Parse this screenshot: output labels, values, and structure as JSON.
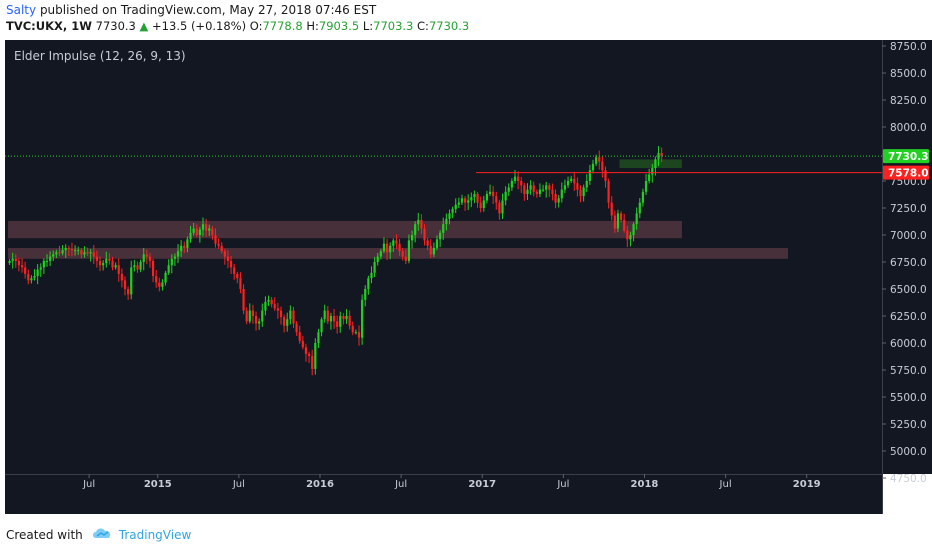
{
  "header": {
    "author": "Salty",
    "published_text": " published on TradingView.com, May 27, 2018 07:46 EST",
    "symbol": "TVC:UKX, 1W",
    "last": "7730.3",
    "change": "+13.5 (+0.18%)",
    "o_label": "O:",
    "o_value": "7778.8",
    "h_label": "H:",
    "h_value": "7903.5",
    "l_label": "L:",
    "l_value": "7703.3",
    "c_label": "C:",
    "c_value": "7730.3"
  },
  "colors": {
    "background": "#131722",
    "up": "#22d022",
    "down": "#ff2020",
    "zone": "#5a3a42",
    "green_zone": "#1e4a20",
    "resistance": "#ff2020"
  },
  "chart_data": {
    "type": "candlestick",
    "title": "Elder Impulse (12, 26, 9, 13)",
    "ylim": [
      4500,
      8850
    ],
    "y_ticks": [
      "8750.0",
      "8500.0",
      "8250.0",
      "8000.0",
      "7750.0",
      "7500.0",
      "7250.0",
      "7000.0",
      "6750.0",
      "6500.0",
      "6250.0",
      "6000.0",
      "5750.0",
      "5500.0",
      "5250.0",
      "5000.0",
      "4750.0"
    ],
    "x_ticks": [
      "Jul",
      "2015",
      "Jul",
      "2016",
      "Jul",
      "2017",
      "Jul",
      "2018",
      "Jul",
      "2019"
    ],
    "price_labels": [
      {
        "text": "7730.3",
        "value": 7730.3,
        "color": "#22d022"
      },
      {
        "text": "7578.0",
        "value": 7578.0,
        "color": "#ff2020"
      }
    ],
    "zones": [
      {
        "from_week": 0,
        "to_week": 216,
        "y_low": 6970,
        "y_high": 7130
      },
      {
        "from_week": 0,
        "to_week": 250,
        "y_low": 6780,
        "y_high": 6880
      },
      {
        "from_week": 196,
        "to_week": 216,
        "y_low": 7620,
        "y_high": 7700
      }
    ],
    "resistance": 7578.0,
    "last_price": 7730.3,
    "closes": [
      6760,
      6780,
      6760,
      6720,
      6700,
      6640,
      6580,
      6600,
      6620,
      6680,
      6700,
      6760,
      6760,
      6800,
      6820,
      6840,
      6830,
      6860,
      6880,
      6870,
      6860,
      6860,
      6860,
      6820,
      6840,
      6830,
      6840,
      6800,
      6760,
      6720,
      6740,
      6780,
      6760,
      6700,
      6720,
      6640,
      6580,
      6500,
      6450,
      6700,
      6720,
      6680,
      6750,
      6820,
      6800,
      6760,
      6620,
      6560,
      6520,
      6560,
      6650,
      6720,
      6780,
      6800,
      6850,
      6900,
      6880,
      6960,
      7020,
      7060,
      7000,
      7050,
      7100,
      7040,
      7060,
      7000,
      6920,
      6900,
      6850,
      6800,
      6760,
      6700,
      6640,
      6600,
      6500,
      6300,
      6200,
      6300,
      6250,
      6180,
      6200,
      6300,
      6380,
      6400,
      6360,
      6320,
      6300,
      6240,
      6160,
      6220,
      6300,
      6180,
      6100,
      6020,
      5960,
      5900,
      5880,
      5760,
      6000,
      6100,
      6220,
      6300,
      6200,
      6250,
      6200,
      6150,
      6250,
      6220,
      6250,
      6160,
      6100,
      6100,
      6050,
      6400,
      6500,
      6600,
      6650,
      6750,
      6800,
      6850,
      6920,
      6840,
      6900,
      6950,
      6920,
      6850,
      6800,
      6760,
      6950,
      7000,
      7100,
      7140,
      7060,
      6950,
      6900,
      6820,
      6880,
      6960,
      7020,
      7100,
      7150,
      7200,
      7240,
      7280,
      7300,
      7340,
      7300,
      7320,
      7350,
      7380,
      7300,
      7250,
      7320,
      7380,
      7400,
      7360,
      7300,
      7200,
      7320,
      7400,
      7440,
      7500,
      7540,
      7500,
      7460,
      7380,
      7420,
      7460,
      7400,
      7380,
      7420,
      7420,
      7460,
      7420,
      7380,
      7300,
      7340,
      7420,
      7460,
      7500,
      7520,
      7480,
      7420,
      7360,
      7440,
      7500,
      7600,
      7660,
      7720,
      7680,
      7600,
      7500,
      7300,
      7180,
      7060,
      7200,
      7140,
      7040,
      6960,
      7000,
      7100,
      7200,
      7300,
      7400,
      7500,
      7560,
      7620,
      7700,
      7760,
      7730
    ]
  },
  "footer": {
    "created_with": "Created with",
    "brand": "TradingView"
  }
}
